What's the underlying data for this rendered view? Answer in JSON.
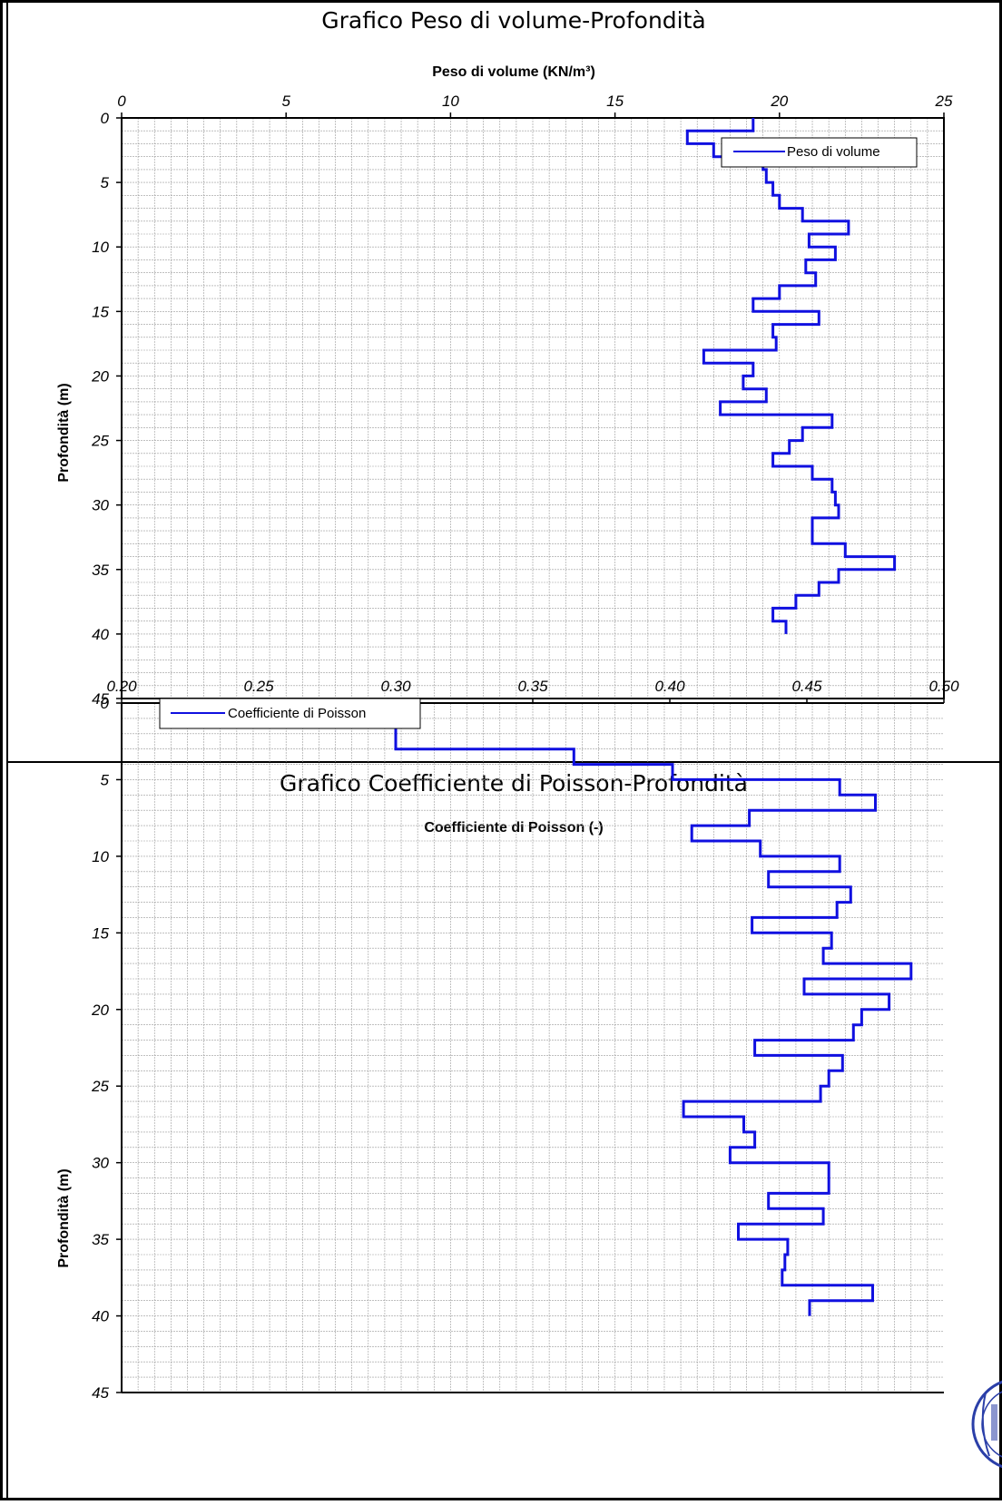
{
  "colors": {
    "series": "#1010e0",
    "grid": "#9a9a9a",
    "frame": "#000000"
  },
  "stamp_icon": "circular-stamp-icon",
  "charts": [
    {
      "title": "Grafico Peso di volume-Profondità",
      "xlabel": "Peso di volume (KN/m³)",
      "ylabel": "Profondità (m)",
      "legend": "Peso di volume",
      "xticks": [
        "0",
        "5",
        "10",
        "15",
        "20",
        "25"
      ],
      "yticks": [
        "0",
        "5",
        "10",
        "15",
        "20",
        "25",
        "30",
        "35",
        "40",
        "45"
      ]
    },
    {
      "title": "Grafico Coefficiente di Poisson-Profondità",
      "xlabel": "Coefficiente di Poisson (-)",
      "ylabel": "Profondità (m)",
      "legend": "Coefficiente di Poisson",
      "xticks": [
        "0.20",
        "0.25",
        "0.30",
        "0.35",
        "0.40",
        "0.45",
        "0.50"
      ],
      "yticks": [
        "0",
        "5",
        "10",
        "15",
        "20",
        "25",
        "30",
        "35",
        "40",
        "45"
      ]
    }
  ],
  "chart_data": [
    {
      "type": "line",
      "title": "Grafico Peso di volume-Profondità",
      "xlabel": "Peso di volume (KN/m³)",
      "ylabel": "Profondità (m)",
      "xlim": [
        0,
        25
      ],
      "ylim": [
        45,
        0
      ],
      "x_axis_position": "top",
      "y_axis_inverted": true,
      "grid": true,
      "legend": "top-right",
      "series": [
        {
          "name": "Peso di volume",
          "step": true,
          "depths": [
            0,
            1,
            2,
            3,
            4,
            5,
            6,
            7,
            8,
            9,
            10,
            11,
            12,
            13,
            14,
            15,
            16,
            17,
            18,
            19,
            20,
            21,
            22,
            23,
            24,
            25,
            26,
            27,
            28,
            29,
            30,
            31,
            32,
            33,
            34,
            35,
            36,
            37,
            38,
            39,
            40
          ],
          "values": [
            19.2,
            17.2,
            18.0,
            19.5,
            19.6,
            19.8,
            20.0,
            20.7,
            22.1,
            20.9,
            21.7,
            20.8,
            21.1,
            20.0,
            19.2,
            21.2,
            19.8,
            19.9,
            17.7,
            19.2,
            18.9,
            19.6,
            18.2,
            21.6,
            20.7,
            20.3,
            19.8,
            21.0,
            21.6,
            21.7,
            21.8,
            21.0,
            21.0,
            22.0,
            23.5,
            21.8,
            21.2,
            20.5,
            19.8,
            20.2,
            20.2
          ]
        }
      ]
    },
    {
      "type": "line",
      "title": "Grafico Coefficiente di Poisson-Profondità",
      "xlabel": "Coefficiente di Poisson (-)",
      "ylabel": "Profondità (m)",
      "xlim": [
        0.2,
        0.5
      ],
      "ylim": [
        45,
        0
      ],
      "x_axis_position": "top",
      "y_axis_inverted": true,
      "grid": true,
      "legend": "top-left",
      "series": [
        {
          "name": "Coefficiente di Poisson",
          "step": true,
          "depths": [
            0,
            1,
            2,
            3,
            4,
            5,
            6,
            7,
            8,
            9,
            10,
            11,
            12,
            13,
            14,
            15,
            16,
            17,
            18,
            19,
            20,
            21,
            22,
            23,
            24,
            25,
            26,
            27,
            28,
            29,
            30,
            31,
            32,
            33,
            34,
            35,
            36,
            37,
            38,
            39,
            40
          ],
          "values": [
            0.3,
            0.3,
            0.3,
            0.365,
            0.401,
            0.462,
            0.475,
            0.429,
            0.408,
            0.433,
            0.462,
            0.436,
            0.466,
            0.461,
            0.43,
            0.459,
            0.456,
            0.488,
            0.449,
            0.48,
            0.47,
            0.467,
            0.431,
            0.463,
            0.458,
            0.455,
            0.405,
            0.427,
            0.431,
            0.422,
            0.458,
            0.458,
            0.436,
            0.456,
            0.425,
            0.443,
            0.442,
            0.441,
            0.474,
            0.451,
            0.451
          ]
        }
      ]
    }
  ]
}
